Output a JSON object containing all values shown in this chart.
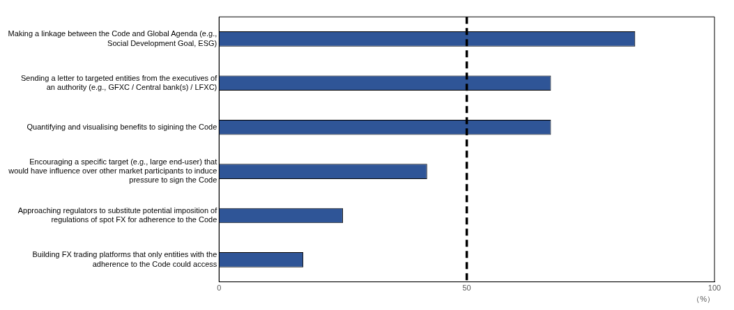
{
  "chart_data": {
    "type": "bar",
    "orientation": "horizontal",
    "xlabel": "（%）",
    "categories": [
      "Making a linkage between the Code and Global Agenda (e.g., Social Development Goal, ESG)",
      "Sending a letter to targeted entities from the executives of an authority (e.g., GFXC / Central bank(s) / LFXC)",
      "Quantifying and visualising benefits to sigining the Code",
      "Encouraging a specific target (e.g., large end-user) that would have influence over other market participants to induce pressure to sign the Code",
      "Approaching regulators to substitute potential imposition of regulations of spot FX for adherence to the Code",
      "Building FX trading platforms that only entities with the adherence to the Code could access"
    ],
    "values": [
      84,
      67,
      67,
      42,
      25,
      17
    ],
    "color": "#2f5597",
    "xlim": [
      0,
      100
    ],
    "xticks": [
      0,
      50,
      100
    ],
    "ref_lines": [
      {
        "axis": "x",
        "value": 50,
        "color": "#000000",
        "line_style": "dashed"
      }
    ],
    "grid": false,
    "legend": false
  }
}
